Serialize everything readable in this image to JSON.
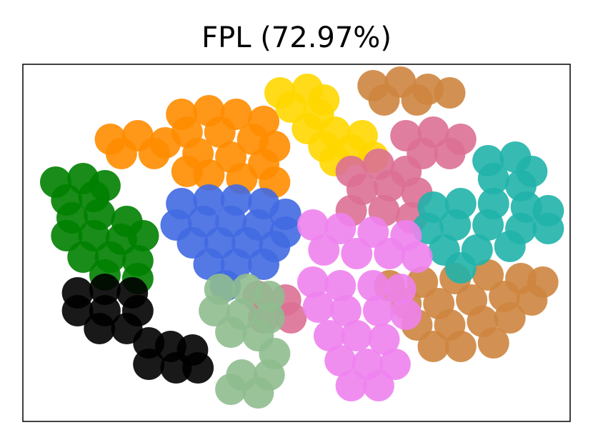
{
  "chart_data": {
    "type": "scatter",
    "title": "FPL (72.97%)",
    "xlim": [
      0,
      100
    ],
    "ylim": [
      0,
      100
    ],
    "series": [
      {
        "color": "#ff8c00",
        "x": [
          16,
          21,
          26,
          18,
          24,
          29,
          34,
          39,
          44,
          30,
          36,
          42,
          46,
          32,
          38,
          44,
          34,
          40,
          46,
          30
        ],
        "y": [
          79,
          80,
          78,
          75,
          75,
          86,
          87,
          86,
          84,
          81,
          81,
          79,
          77,
          75,
          74,
          72,
          69,
          68,
          67,
          70
        ]
      },
      {
        "color": "#ffd700",
        "x": [
          47,
          52,
          55,
          49,
          54,
          52,
          57,
          62,
          55,
          60,
          64,
          57
        ],
        "y": [
          92,
          93,
          90,
          88,
          86,
          82,
          81,
          80,
          77,
          76,
          74,
          73
        ]
      },
      {
        "color": "#cd853f",
        "x": [
          64,
          69,
          74,
          78,
          66,
          72,
          67,
          73,
          79,
          85,
          91,
          95,
          70,
          76,
          82,
          88,
          93,
          72,
          78,
          84,
          89,
          80,
          86,
          75
        ],
        "y": [
          94,
          95,
          93,
          92,
          90,
          90,
          38,
          39,
          40,
          41,
          40,
          39,
          33,
          33,
          34,
          35,
          34,
          27,
          27,
          28,
          29,
          21,
          22,
          21
        ]
      },
      {
        "color": "#db7093",
        "x": [
          70,
          75,
          80,
          73,
          78,
          60,
          65,
          70,
          62,
          67,
          72,
          60,
          66,
          71,
          43,
          48,
          44,
          49
        ],
        "y": [
          80,
          81,
          79,
          75,
          75,
          70,
          72,
          70,
          65,
          66,
          64,
          59,
          59,
          57,
          35,
          34,
          29,
          29
        ]
      },
      {
        "color": "#20b2aa",
        "x": [
          85,
          90,
          93,
          86,
          91,
          75,
          80,
          86,
          92,
          96,
          74,
          79,
          85,
          91,
          96,
          77,
          83,
          89,
          80
        ],
        "y": [
          73,
          74,
          70,
          68,
          66,
          60,
          61,
          61,
          60,
          59,
          54,
          55,
          55,
          54,
          54,
          48,
          48,
          49,
          43
        ]
      },
      {
        "color": "#008000",
        "x": [
          6,
          11,
          15,
          8,
          13,
          9,
          14,
          19,
          8,
          13,
          18,
          22,
          11,
          16,
          21,
          15,
          21
        ],
        "y": [
          67,
          68,
          66,
          62,
          63,
          57,
          58,
          56,
          52,
          52,
          51,
          52,
          46,
          46,
          45,
          41,
          40
        ]
      },
      {
        "color": "#4169e1",
        "x": [
          29,
          34,
          39,
          44,
          48,
          28,
          33,
          38,
          43,
          48,
          31,
          36,
          41,
          46,
          34,
          39,
          44,
          37
        ],
        "y": [
          61,
          62,
          62,
          61,
          58,
          55,
          56,
          56,
          55,
          53,
          50,
          50,
          50,
          49,
          44,
          44,
          44,
          38
        ]
      },
      {
        "color": "#8fbc8f",
        "x": [
          36,
          41,
          45,
          35,
          40,
          45,
          38,
          43,
          40,
          45,
          38,
          43,
          46
        ],
        "y": [
          37,
          37,
          35,
          31,
          30,
          29,
          25,
          24,
          13,
          13,
          9,
          8,
          19
        ]
      },
      {
        "color": "#ee82ee",
        "x": [
          53,
          58,
          64,
          70,
          55,
          61,
          67,
          72,
          53,
          58,
          64,
          69,
          54,
          59,
          65,
          70,
          56,
          61,
          66,
          58,
          63,
          68,
          60,
          65
        ],
        "y": [
          55,
          54,
          53,
          52,
          48,
          47,
          47,
          46,
          39,
          38,
          38,
          37,
          32,
          31,
          31,
          30,
          24,
          24,
          23,
          17,
          16,
          16,
          10,
          10
        ]
      },
      {
        "color": "#000000",
        "x": [
          10,
          15,
          20,
          10,
          15,
          21,
          14,
          19,
          23,
          27,
          31,
          23,
          28,
          32
        ],
        "y": [
          36,
          37,
          36,
          31,
          31,
          31,
          26,
          26,
          22,
          21,
          20,
          16,
          15,
          15
        ]
      }
    ]
  }
}
